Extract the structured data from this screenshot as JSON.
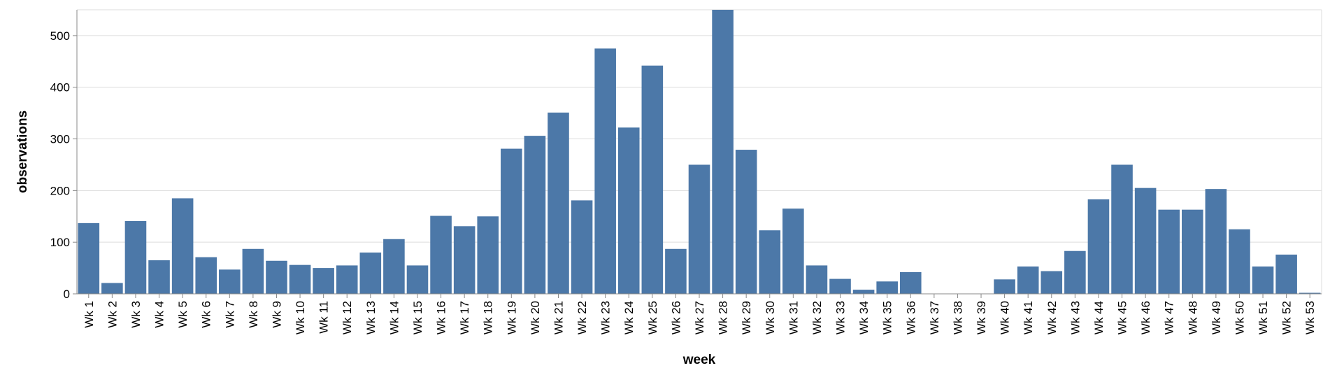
{
  "chart_data": {
    "type": "bar",
    "title": "",
    "xlabel": "week",
    "ylabel": "observations",
    "ylim": [
      0,
      550
    ],
    "yticks": [
      0,
      100,
      200,
      300,
      400,
      500
    ],
    "grid": true,
    "colors": {
      "bar": "#4c78a8",
      "grid": "#dddddd",
      "axis": "#888888"
    },
    "categories": [
      "Wk 1",
      "Wk 2",
      "Wk 3",
      "Wk 4",
      "Wk 5",
      "Wk 6",
      "Wk 7",
      "Wk 8",
      "Wk 9",
      "Wk 10",
      "Wk 11",
      "Wk 12",
      "Wk 13",
      "Wk 14",
      "Wk 15",
      "Wk 16",
      "Wk 17",
      "Wk 18",
      "Wk 19",
      "Wk 20",
      "Wk 21",
      "Wk 22",
      "Wk 23",
      "Wk 24",
      "Wk 25",
      "Wk 26",
      "Wk 27",
      "Wk 28",
      "Wk 29",
      "Wk 30",
      "Wk 31",
      "Wk 32",
      "Wk 33",
      "Wk 34",
      "Wk 35",
      "Wk 36",
      "Wk 37",
      "Wk 38",
      "Wk 39",
      "Wk 40",
      "Wk 41",
      "Wk 42",
      "Wk 43",
      "Wk 44",
      "Wk 45",
      "Wk 46",
      "Wk 47",
      "Wk 48",
      "Wk 49",
      "Wk 50",
      "Wk 51",
      "Wk 52",
      "Wk 53"
    ],
    "values": [
      137,
      21,
      141,
      65,
      185,
      71,
      47,
      87,
      64,
      56,
      50,
      55,
      80,
      106,
      55,
      151,
      131,
      150,
      281,
      306,
      351,
      181,
      475,
      322,
      442,
      87,
      250,
      550,
      279,
      123,
      165,
      55,
      29,
      8,
      24,
      42,
      0,
      0,
      0,
      28,
      53,
      44,
      83,
      183,
      250,
      205,
      163,
      163,
      203,
      125,
      53,
      76,
      2
    ]
  }
}
